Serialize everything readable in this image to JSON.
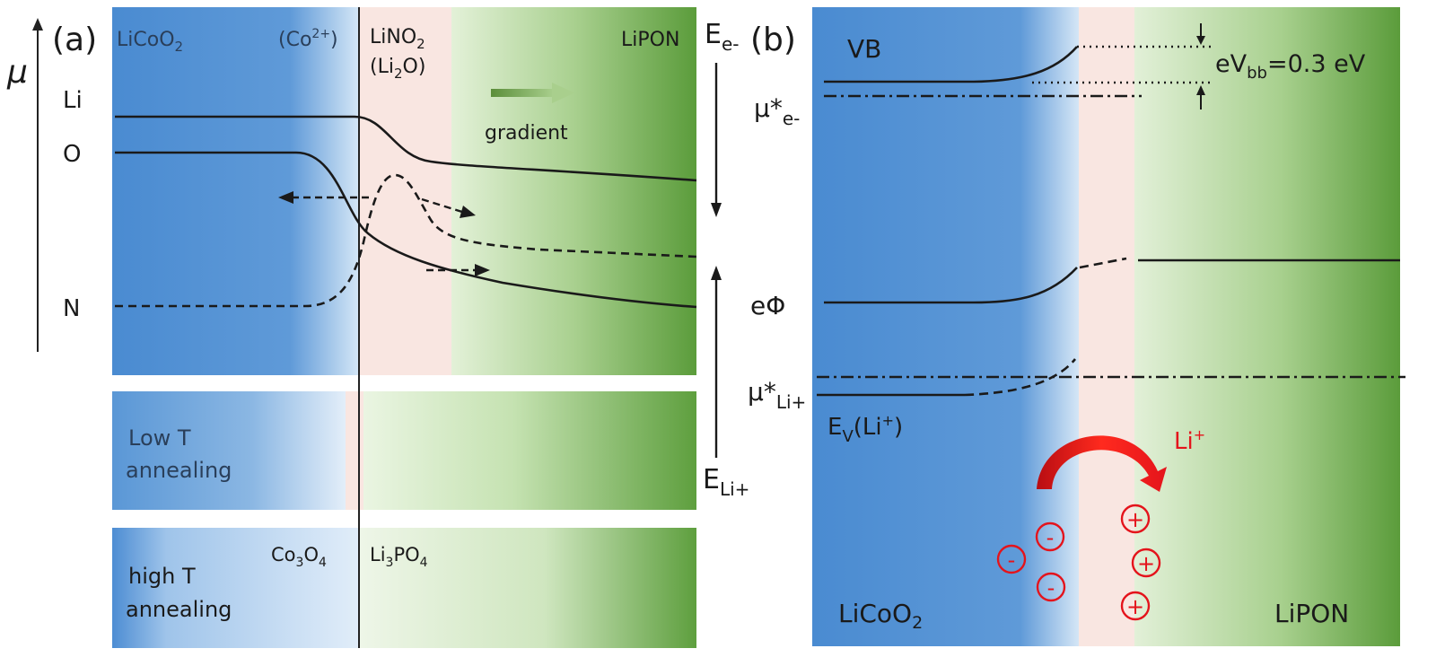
{
  "panel_a": {
    "label": "(a)",
    "axis_symbol": "μ",
    "region_licoo2": "LiCoO",
    "region_licoo2_sub": "2",
    "region_co2": "(Co",
    "region_co2_sup": "2+",
    "region_co2_end": ")",
    "region_lino2": "LiNO",
    "region_lino2_sub": "2",
    "region_li2o_open": "(Li",
    "region_li2o_sub": "2",
    "region_li2o_close": "O)",
    "region_lipon": "LiPON",
    "gradient_label": "gradient",
    "curve_li": "Li",
    "curve_o": "O",
    "curve_n": "N",
    "low_t_line1": "Low T",
    "low_t_line2": "annealing",
    "high_t_line1": "high T",
    "high_t_line2": "annealing",
    "co3o4": "Co",
    "co3o4_sub1": "3",
    "co3o4_o": "O",
    "co3o4_sub2": "4",
    "li3po4": "Li",
    "li3po4_sub1": "3",
    "li3po4_po": "PO",
    "li3po4_sub2": "4"
  },
  "axis_mid": {
    "ee_main": "E",
    "ee_sub": "e-",
    "eli_main": "E",
    "eli_sub": "Li+"
  },
  "panel_b": {
    "label": "(b)",
    "vb": "VB",
    "mu_e_main": "μ*",
    "mu_e_sub": "e-",
    "ebb_main": "eV",
    "ebb_sub": "bb",
    "ebb_value": "=0.3 eV",
    "ephi": "eΦ",
    "mu_li_main": "μ*",
    "mu_li_sub": "Li+",
    "ev_main": "E",
    "ev_sub": "V",
    "ev_rest": "(Li",
    "ev_sup": "+",
    "ev_close": ")",
    "li_ion_main": "Li",
    "li_ion_sup": "+",
    "minus_sign": "-",
    "plus_sign": "+",
    "licoo2_main": "LiCoO",
    "licoo2_sub": "2",
    "lipon": "LiPON"
  },
  "colors": {
    "blue": "#4f8fd4",
    "pale_blue": "#d6e7f6",
    "pink": "#fae7e2",
    "pale_green": "#e4f1da",
    "green": "#5e9f3e",
    "red": "#e4141c"
  }
}
